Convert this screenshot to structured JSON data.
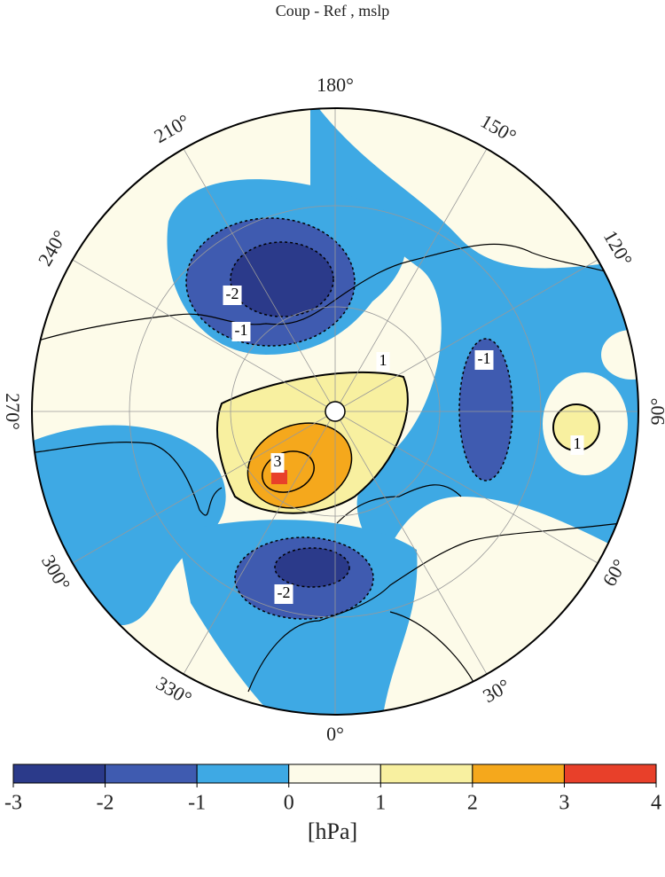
{
  "title": "Coup - Ref , mslp",
  "map": {
    "lon_labels": [
      {
        "value": 0,
        "label": "0°"
      },
      {
        "value": 30,
        "label": "30°"
      },
      {
        "value": 60,
        "label": "60°"
      },
      {
        "value": 90,
        "label": "90°"
      },
      {
        "value": 120,
        "label": "120°"
      },
      {
        "value": 150,
        "label": "150°"
      },
      {
        "value": 180,
        "label": "180°"
      },
      {
        "value": 210,
        "label": "210°"
      },
      {
        "value": 240,
        "label": "240°"
      },
      {
        "value": 270,
        "label": "270°"
      },
      {
        "value": 300,
        "label": "300°"
      },
      {
        "value": 330,
        "label": "330°"
      }
    ],
    "contour_labels": [
      "-2",
      "-1",
      "1",
      "-1",
      "1",
      "3",
      "-2"
    ]
  },
  "colorbar": {
    "ticks": [
      -3,
      -2,
      -1,
      0,
      1,
      2,
      3,
      4
    ],
    "colors": [
      "#2b3a8a",
      "#3f5bb0",
      "#3ea9e4",
      "#fdfbe9",
      "#f8f0a0",
      "#f5a81c",
      "#e8402a"
    ],
    "label": "[hPa]"
  }
}
